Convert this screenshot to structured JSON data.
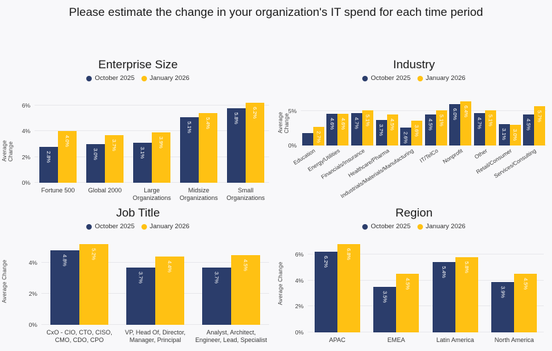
{
  "page_title": "Please estimate the change in your organization's IT spend for each time period",
  "colors": {
    "october_2025": "#2B3D6B",
    "january_2026": "#FFC113",
    "background": "#F8F8FA",
    "grid": "#E8E8EC",
    "title_text": "#1A1A1A",
    "axis_text": "#444444",
    "bar_label_text": "#FFFFFF"
  },
  "chart_data": [
    {
      "type": "bar",
      "title": "Enterprise Size",
      "ylabel": "Average Change",
      "legend_position": "top-center",
      "grid": true,
      "categories": [
        "Fortune 500",
        "Global 2000",
        "Large Organizations",
        "Midsize Organizations",
        "Small Organizations"
      ],
      "series": [
        {
          "name": "October 2025",
          "values": [
            2.8,
            3.0,
            3.1,
            5.1,
            5.8
          ],
          "labels": [
            "2.8%",
            "3.0%",
            "3.1%",
            "5.1%",
            "5.8%"
          ]
        },
        {
          "name": "January 2026",
          "values": [
            4.0,
            3.7,
            3.9,
            5.4,
            6.2
          ],
          "labels": [
            "4.0%",
            "3.7%",
            "3.9%",
            "5.4%",
            "6.2%"
          ]
        }
      ],
      "yticks": [
        "0%",
        "2%",
        "4%",
        "6%"
      ],
      "ytick_values": [
        0,
        2,
        4,
        6
      ],
      "ylim": [
        0,
        6.7
      ]
    },
    {
      "type": "bar",
      "title": "Industry",
      "ylabel": "Average Change",
      "legend_position": "top-center",
      "grid": true,
      "categories": [
        "Education",
        "Energy/Utilities",
        "Financials/Insurance",
        "Healthcare/Pharma",
        "Industrials/Materials/Manufacturing",
        "IT/TelCo",
        "Nonprofit",
        "Other",
        "Retail/Consumer",
        "Services/Consulting"
      ],
      "series": [
        {
          "name": "October 2025",
          "values": [
            1.8,
            4.6,
            4.7,
            3.7,
            2.6,
            4.5,
            6.0,
            4.7,
            3.1,
            4.5
          ],
          "labels": [
            "",
            "4.6%",
            "4.7%",
            "3.7%",
            "2.6%",
            "4.5%",
            "6.0%",
            "4.7%",
            "3.1%",
            "4.5%"
          ]
        },
        {
          "name": "January 2026",
          "values": [
            2.7,
            4.6,
            5.1,
            4.5,
            3.6,
            5.1,
            6.4,
            5.1,
            3.0,
            5.7
          ],
          "labels": [
            "2.7%",
            "4.6%",
            "5.1%",
            "4.5%",
            "3.6%",
            "5.1%",
            "6.4%",
            "5.1%",
            "3.0%",
            "5.7%"
          ]
        }
      ],
      "yticks": [
        "0%",
        "5%"
      ],
      "ytick_values": [
        0,
        5
      ],
      "ylim": [
        0,
        7.3
      ]
    },
    {
      "type": "bar",
      "title": "Job Title",
      "ylabel": "Average Change",
      "legend_position": "top-center",
      "grid": true,
      "categories": [
        "CxO - CIO, CTO, CISO, CMO, CDO, CPO",
        "VP, Head Of, Director, Manager, Principal",
        "Analyst, Architect, Engineer, Lead, Specialist"
      ],
      "series": [
        {
          "name": "October 2025",
          "values": [
            4.8,
            3.7,
            3.7
          ],
          "labels": [
            "4.8%",
            "3.7%",
            "3.7%"
          ]
        },
        {
          "name": "January 2026",
          "values": [
            5.2,
            4.4,
            4.5
          ],
          "labels": [
            "5.2%",
            "4.4%",
            "4.5%"
          ]
        }
      ],
      "yticks": [
        "0%",
        "2%",
        "4%"
      ],
      "ytick_values": [
        0,
        2,
        4
      ],
      "ylim": [
        0,
        5.6
      ]
    },
    {
      "type": "bar",
      "title": "Region",
      "ylabel": "Average Change",
      "legend_position": "top-center",
      "grid": true,
      "categories": [
        "APAC",
        "EMEA",
        "Latin America",
        "North America"
      ],
      "series": [
        {
          "name": "October 2025",
          "values": [
            6.2,
            3.5,
            5.4,
            3.9
          ],
          "labels": [
            "6.2%",
            "3.5%",
            "5.4%",
            "3.9%"
          ]
        },
        {
          "name": "January 2026",
          "values": [
            6.8,
            4.5,
            5.8,
            4.5
          ],
          "labels": [
            "6.8%",
            "4.5%",
            "5.8%",
            "4.5%"
          ]
        }
      ],
      "yticks": [
        "0%",
        "2%",
        "4%",
        "6%"
      ],
      "ytick_values": [
        0,
        2,
        4,
        6
      ],
      "ylim": [
        0,
        7.6
      ]
    }
  ]
}
